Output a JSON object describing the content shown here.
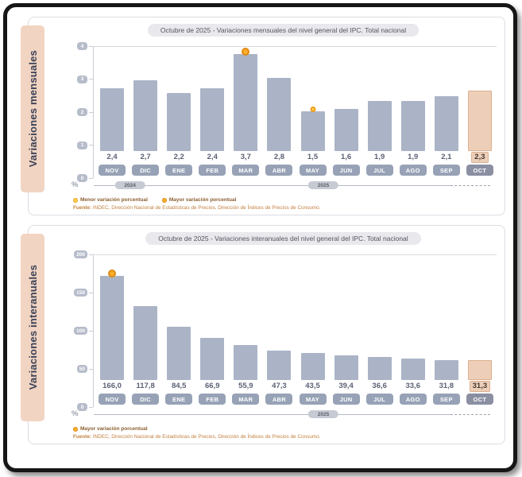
{
  "colors": {
    "bar": "#abb4c6",
    "highlight_bar": "#edcfb9",
    "sidebar_band": "#f1d4c2",
    "month_badge": "#97a2b6",
    "marker_mayor": "#f9ae2d",
    "marker_menor": "#ffd34e",
    "title_pill_bg": "#e8e8ed"
  },
  "chart_data": [
    {
      "type": "bar",
      "title": "Octubre de 2025 - Variaciones mensuales del nivel general del IPC. Total nacional",
      "sidebar_label": "Variaciones mensuales",
      "unit_label": "%",
      "ylim": [
        0,
        4
      ],
      "yticks": [
        "4",
        "3",
        "2",
        "1",
        "0"
      ],
      "categories": [
        "NOV",
        "DIC",
        "ENE",
        "FEB",
        "MAR",
        "ABR",
        "MAY",
        "JUN",
        "JUL",
        "AGO",
        "SEP",
        "OCT"
      ],
      "values": [
        2.4,
        2.7,
        2.2,
        2.4,
        3.7,
        2.8,
        1.5,
        1.6,
        1.9,
        1.9,
        2.1,
        2.3
      ],
      "value_labels": [
        "2,4",
        "2,7",
        "2,2",
        "2,4",
        "3,7",
        "2,8",
        "1,5",
        "1,6",
        "1,9",
        "1,9",
        "2,1",
        "2,3"
      ],
      "highlight_index": 11,
      "max_marker_index": 4,
      "min_marker_index": 6,
      "years": [
        {
          "label": "2024",
          "center_pct": 9
        },
        {
          "label": "2025",
          "center_pct": 57
        }
      ],
      "legend": [
        {
          "label": "Menor variación porcentual",
          "type": "menor"
        },
        {
          "label": "Mayor variación porcentual",
          "type": "mayor"
        }
      ],
      "source_bold": "Fuente:",
      "source_rest": " INDEC, Dirección Nacional de Estadísticas de Precios, Dirección de Índices de Precios de Consumo."
    },
    {
      "type": "bar",
      "title": "Octubre de 2025 - Variaciones interanuales del nivel general del IPC. Total nacional",
      "sidebar_label": "Variaciones interanuales",
      "unit_label": "%",
      "ylim": [
        0,
        200
      ],
      "yticks": [
        "200",
        "150",
        "100",
        "50",
        "0"
      ],
      "categories": [
        "NOV",
        "DIC",
        "ENE",
        "FEB",
        "MAR",
        "ABR",
        "MAY",
        "JUN",
        "JUL",
        "AGO",
        "SEP",
        "OCT"
      ],
      "values": [
        166.0,
        117.8,
        84.5,
        66.9,
        55.9,
        47.3,
        43.5,
        39.4,
        36.6,
        33.6,
        31.8,
        31.3
      ],
      "value_labels": [
        "166,0",
        "117,8",
        "84,5",
        "66,9",
        "55,9",
        "47,3",
        "43,5",
        "39,4",
        "36,6",
        "33,6",
        "31,8",
        "31,3"
      ],
      "highlight_index": 11,
      "max_marker_index": 0,
      "min_marker_index": null,
      "years": [
        {
          "label": "2025",
          "center_pct": 57
        }
      ],
      "legend": [
        {
          "label": "Mayor variación porcentual",
          "type": "mayor"
        }
      ],
      "source_bold": "Fuente:",
      "source_rest": " INDEC, Dirección Nacional de Estadísticas de Precios, Dirección de Índices de Precios de Consumo."
    }
  ]
}
